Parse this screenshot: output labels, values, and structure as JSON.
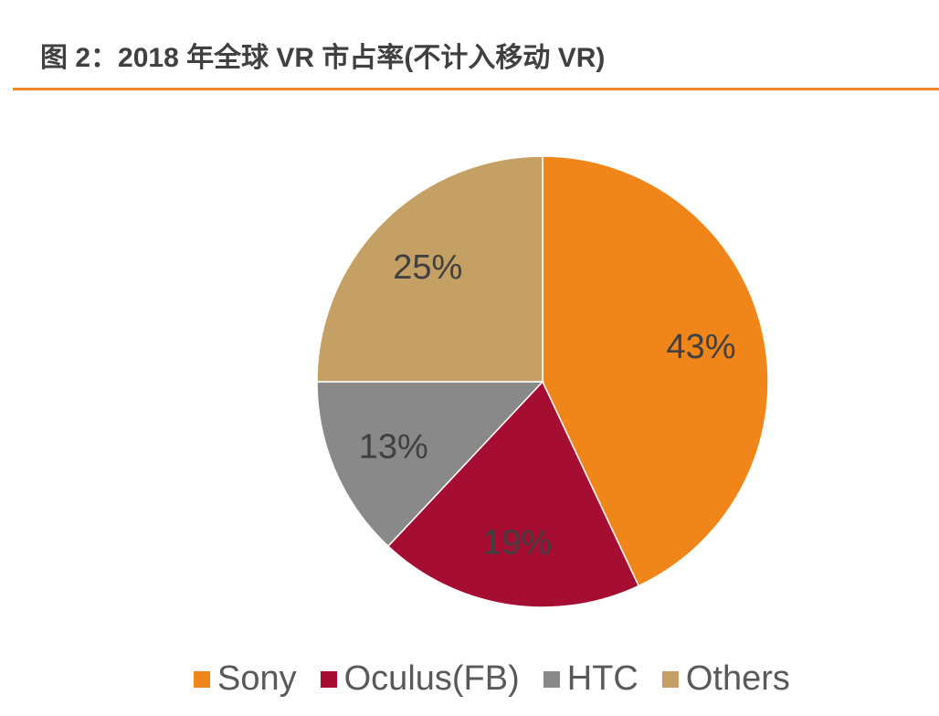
{
  "title": "图 2：2018 年全球 VR 市占率(不计入移动 VR)",
  "chart_data": {
    "type": "pie",
    "title": "图 2：2018 年全球 VR 市占率(不计入移动 VR)",
    "start_angle": "12 o'clock, clockwise",
    "legend_position": "bottom",
    "slices": [
      {
        "name": "Sony",
        "value": 43,
        "label": "43%",
        "color": "#f0861a"
      },
      {
        "name": "Oculus(FB)",
        "value": 19,
        "label": "19%",
        "color": "#a50e32"
      },
      {
        "name": "HTC",
        "value": 13,
        "label": "13%",
        "color": "#898989"
      },
      {
        "name": "Others",
        "value": 25,
        "label": "25%",
        "color": "#c4a064"
      }
    ]
  }
}
